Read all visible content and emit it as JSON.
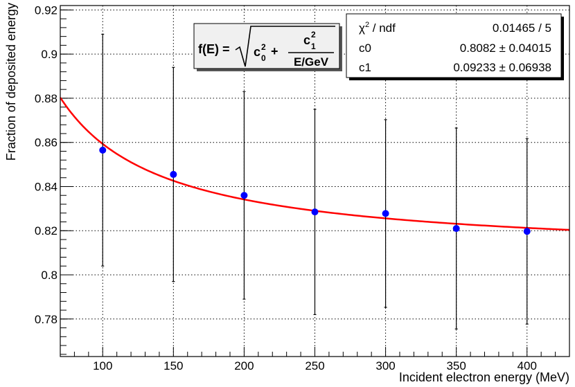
{
  "chart_data": {
    "type": "scatter",
    "title": "",
    "xlabel": "Incident electron energy (MeV)",
    "ylabel": "Fraction of deposited energy",
    "xlim": [
      70,
      430
    ],
    "ylim": [
      0.763,
      0.922
    ],
    "xticks": [
      100,
      150,
      200,
      250,
      300,
      350,
      400
    ],
    "xtick_labels": [
      "100",
      "150",
      "200",
      "250",
      "300",
      "350",
      "400"
    ],
    "yticks": [
      0.78,
      0.8,
      0.82,
      0.84,
      0.86,
      0.88,
      0.9,
      0.92
    ],
    "ytick_labels": [
      "0.78",
      "0.8",
      "0.82",
      "0.84",
      "0.86",
      "0.88",
      "0.9",
      "0.92"
    ],
    "grid": true,
    "series": [
      {
        "type": "errorbar",
        "color": "#0000ff",
        "x": [
          100,
          150,
          200,
          250,
          300,
          350,
          400
        ],
        "y": [
          0.8565,
          0.8455,
          0.836,
          0.8285,
          0.8278,
          0.821,
          0.8197
        ],
        "yerr_low": [
          0.0525,
          0.0485,
          0.047,
          0.0465,
          0.0425,
          0.0455,
          0.042
        ],
        "yerr_high": [
          0.0525,
          0.0485,
          0.047,
          0.0465,
          0.0425,
          0.0455,
          0.042
        ]
      },
      {
        "type": "line",
        "color": "#ff0000",
        "function": "sqrt(c0^2 + c1^2/(E/GeV))",
        "params": {
          "c0": 0.8082,
          "c1": 0.09233
        },
        "x_range": [
          70,
          430
        ]
      }
    ],
    "formula": {
      "lhs": "f(E) =",
      "c0_base": "c",
      "c0_sub": "0",
      "c0_sup": "2",
      "plus": "+",
      "c1_base": "c",
      "c1_sub": "1",
      "c1_sup": "2",
      "denominator": "E/GeV"
    },
    "stats_box": {
      "rows": [
        {
          "label_base": "χ",
          "label_sup": "2",
          "label_rest": " / ndf",
          "value": "0.01465 / 5"
        },
        {
          "label": "c0",
          "value": "0.8082 ± 0.04015"
        },
        {
          "label": "c1",
          "value": "0.09233 ± 0.06938"
        }
      ]
    }
  }
}
